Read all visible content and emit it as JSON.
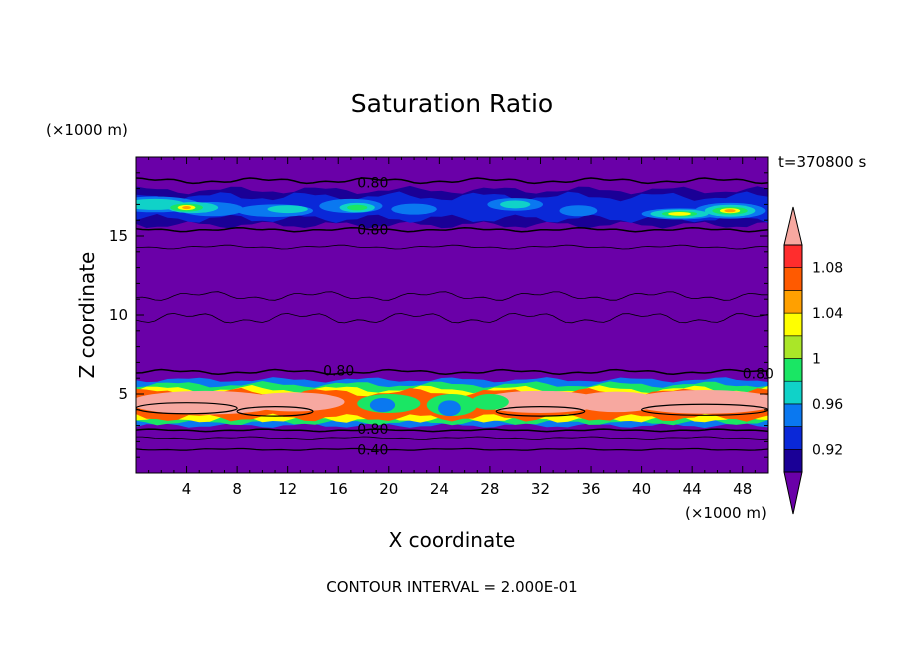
{
  "chart_data": {
    "type": "heatmap",
    "title": "Saturation Ratio",
    "xlabel": "X coordinate",
    "ylabel": "Z coordinate",
    "x_unit": "(×1000 m)",
    "y_unit": "(×1000 m)",
    "time_label": "t=370800 s",
    "footer": "CONTOUR INTERVAL = 2.000E-01",
    "xlim": [
      0,
      50
    ],
    "ylim": [
      0,
      20
    ],
    "x_ticks": [
      "4",
      "8",
      "12",
      "16",
      "20",
      "24",
      "28",
      "32",
      "36",
      "40",
      "44",
      "48"
    ],
    "x_tick_values": [
      4,
      8,
      12,
      16,
      20,
      24,
      28,
      32,
      36,
      40,
      44,
      48
    ],
    "y_ticks": [
      "5",
      "10",
      "15"
    ],
    "y_tick_values": [
      5,
      10,
      15
    ],
    "contour_interval": 0.2,
    "contour_labels": [
      {
        "text": "0.80",
        "x": 17.5,
        "z": 18.4
      },
      {
        "text": "0.80",
        "x": 17.5,
        "z": 15.4
      },
      {
        "text": "0.80",
        "x": 14.8,
        "z": 6.5
      },
      {
        "text": "0.80",
        "x": 48.0,
        "z": 6.3
      },
      {
        "text": "0.80",
        "x": 17.5,
        "z": 2.8
      },
      {
        "text": "0.40",
        "x": 17.5,
        "z": 1.5
      }
    ],
    "colorbar": {
      "levels": [
        0.9,
        0.92,
        0.94,
        0.96,
        0.98,
        1.0,
        1.02,
        1.04,
        1.06,
        1.08,
        1.1
      ],
      "tick_labels": [
        "0.92",
        "0.96",
        "1",
        "1.04",
        "1.08"
      ],
      "tick_values": [
        0.92,
        0.96,
        1.0,
        1.04,
        1.08
      ],
      "colors": [
        "#6a00a8",
        "#1a0096",
        "#0a28d8",
        "#0a78f0",
        "#10d2c8",
        "#1ae664",
        "#aae628",
        "#ffff00",
        "#ffa000",
        "#ff5a00",
        "#ff2d2d",
        "#f7a8a0"
      ]
    },
    "background_color": "#6a00a8"
  }
}
